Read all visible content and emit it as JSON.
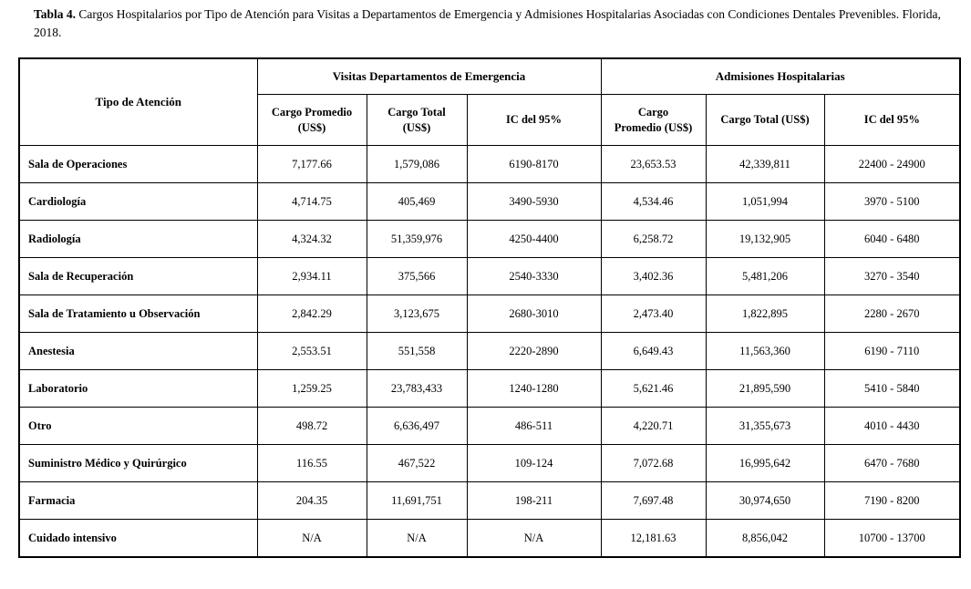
{
  "title": {
    "label": "Tabla 4.",
    "text": "Cargos Hospitalarios por Tipo de Atención para Visitas a Departamentos de Emergencia y Admisiones Hospitalarias Asociadas con Condiciones Dentales Prevenibles. Florida, 2018."
  },
  "table": {
    "corner_header": "Tipo de Atención",
    "groups": [
      {
        "label": "Visitas Departamentos de Emergencia",
        "columns": [
          "Cargo Promedio\n(US$)",
          "Cargo Total\n(US$)",
          "IC del 95%"
        ]
      },
      {
        "label": "Admisiones Hospitalarias",
        "columns": [
          "Cargo\nPromedio (US$)",
          "Cargo Total (US$)",
          "IC del 95%"
        ]
      }
    ],
    "rows": [
      {
        "care_type": "Sala de Operaciones",
        "values": [
          "7,177.66",
          "1,579,086",
          "6190-8170",
          "23,653.53",
          "42,339,811",
          "22400 - 24900"
        ]
      },
      {
        "care_type": "Cardiología",
        "values": [
          "4,714.75",
          "405,469",
          "3490-5930",
          "4,534.46",
          "1,051,994",
          "3970 - 5100"
        ]
      },
      {
        "care_type": "Radiología",
        "values": [
          "4,324.32",
          "51,359,976",
          "4250-4400",
          "6,258.72",
          "19,132,905",
          "6040 - 6480"
        ]
      },
      {
        "care_type": "Sala de Recuperación",
        "values": [
          "2,934.11",
          "375,566",
          "2540-3330",
          "3,402.36",
          "5,481,206",
          "3270 - 3540"
        ]
      },
      {
        "care_type": "Sala de Tratamiento u Observación",
        "values": [
          "2,842.29",
          "3,123,675",
          "2680-3010",
          "2,473.40",
          "1,822,895",
          "2280 - 2670"
        ]
      },
      {
        "care_type": "Anestesia",
        "values": [
          "2,553.51",
          "551,558",
          "2220-2890",
          "6,649.43",
          "11,563,360",
          "6190 - 7110"
        ]
      },
      {
        "care_type": "Laboratorio",
        "values": [
          "1,259.25",
          "23,783,433",
          "1240-1280",
          "5,621.46",
          "21,895,590",
          "5410 - 5840"
        ]
      },
      {
        "care_type": "Otro",
        "values": [
          "498.72",
          "6,636,497",
          "486-511",
          "4,220.71",
          "31,355,673",
          "4010 - 4430"
        ]
      },
      {
        "care_type": "Suministro Médico y Quirúrgico",
        "values": [
          "116.55",
          "467,522",
          "109-124",
          "7,072.68",
          "16,995,642",
          "6470 - 7680"
        ]
      },
      {
        "care_type": "Farmacia",
        "values": [
          "204.35",
          "11,691,751",
          "198-211",
          "7,697.48",
          "30,974,650",
          "7190 - 8200"
        ]
      },
      {
        "care_type": "Cuidado intensivo",
        "values": [
          "N/A",
          "N/A",
          "N/A",
          "12,181.63",
          "8,856,042",
          "10700 - 13700"
        ]
      }
    ]
  }
}
